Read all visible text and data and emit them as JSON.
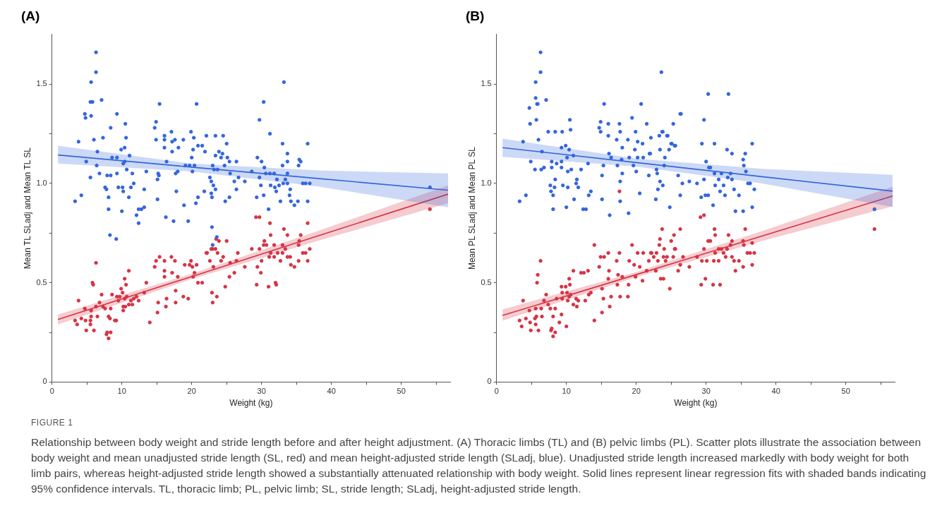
{
  "chart_data": [
    {
      "type": "scatter",
      "title": "(A)",
      "xlabel": "Weight (kg)",
      "ylabel": "Mean TL SLadj and Mean TL SL",
      "xlim": [
        0,
        57
      ],
      "ylim": [
        0,
        1.75
      ],
      "xticks": [
        0,
        {
          "value": 5,
          "label": null
        },
        10,
        {
          "value": 15,
          "label": null
        },
        20,
        {
          "value": 25,
          "label": null
        },
        30,
        {
          "value": 35,
          "label": null
        },
        40,
        {
          "value": 45,
          "label": null
        },
        50,
        {
          "value": 55,
          "label": null
        }
      ],
      "yticks": [
        0,
        {
          "value": 0.25,
          "label": null
        },
        0.5,
        {
          "value": 0.75,
          "label": null
        },
        {
          "value": 1,
          "label": "1.0"
        },
        {
          "value": 1.25,
          "label": null
        },
        1.5
      ],
      "grid": false,
      "marker": "circle",
      "annotations": [
        "FIGURE 1",
        "Relationship between body weight and stride length before and after height adjustment. (A) Thoracic limbs (TL) and (B) pelvic limbs (PL). Scatter plots illustrate the association between body weight and mean unadjusted stride length (SL, red) and mean height-adjusted stride length (SLadj, blue). Unadjusted stride length increased markedly with body weight for both limb pairs, whereas height-adjusted stride length showed a substantially attenuated relationship with body weight. Solid lines represent linear regression fits with shaded bands indicating 95% confidence intervals. TL, thoracic limb; PL, pelvic limb; SL, stride length; SLadj, height-adjusted stride length."
      ],
      "series": [
        {
          "type": "scatter",
          "color": "#3366dd",
          "x": [
            3.3,
            3.8,
            4.2,
            4.7,
            4.8,
            4.9,
            5.5,
            5.5,
            5.6,
            5.6,
            5.8,
            6.0,
            6.3,
            6.3,
            6.4,
            6.5,
            6.8,
            7.1,
            7.3,
            7.6,
            7.8,
            7.9,
            8.1,
            8.1,
            8.3,
            8.4,
            8.4,
            8.6,
            9.2,
            9.3,
            9.3,
            9.3,
            9.5,
            9.9,
            10.0,
            10.1,
            10.2,
            10.2,
            10.4,
            10.4,
            10.5,
            10.6,
            10.7,
            11.0,
            11.1,
            11.3,
            11.5,
            11.7,
            12.1,
            12.4,
            12.4,
            12.8,
            13.2,
            13.2,
            13.5,
            14.7,
            14.9,
            14.9,
            15.1,
            15.1,
            15.2,
            15.3,
            15.4,
            16.1,
            16.1,
            16.1,
            16.3,
            16.4,
            17.1,
            17.2,
            17.2,
            17.4,
            17.6,
            17.7,
            17.8,
            18.0,
            18.1,
            18.8,
            18.9,
            19.1,
            19.5,
            19.7,
            19.9,
            20.0,
            20.1,
            20.2,
            20.3,
            20.4,
            20.6,
            20.7,
            20.9,
            20.9,
            21.5,
            21.8,
            21.9,
            22.1,
            22.6,
            22.8,
            22.9,
            23.0,
            23.0,
            23.1,
            23.2,
            23.4,
            23.4,
            23.6,
            23.7,
            23.9,
            24.2,
            24.5,
            24.8,
            25.0,
            22.8,
            22.9,
            23.4,
            24.4,
            24.7,
            25.1,
            25.4,
            25.4,
            25.5,
            26.1,
            26.4,
            26.4,
            26.7,
            27.6,
            28.6,
            29.3,
            29.4,
            29.7,
            29.7,
            29.9,
            30.0,
            30.3,
            30.3,
            30.4,
            30.6,
            31.0,
            31.2,
            31.2,
            31.3,
            31.8,
            31.9,
            32.1,
            32.2,
            32.5,
            32.7,
            33.0,
            33.0,
            33.2,
            33.1,
            33.4,
            33.7,
            33.7,
            33.7,
            33.7,
            34.0,
            34.1,
            34.2,
            34.7,
            35.2,
            35.3,
            35.4,
            35.6,
            35.9,
            36.3,
            36.6,
            36.6,
            36.9,
            54.1
          ],
          "values": [
            0.91,
            1.21,
            0.94,
            1.35,
            1.33,
            1.11,
            1.03,
            1.41,
            1.34,
            1.51,
            1.41,
            1.22,
            1.66,
            1.56,
            1.09,
            1.16,
            1.05,
            1.42,
            1.23,
            0.98,
            0.97,
            1.04,
            0.93,
            0.87,
            0.74,
            1.28,
            1.04,
            1.13,
            0.72,
            1.05,
            1.35,
            1.13,
            0.98,
            1.17,
            0.86,
            0.98,
            1.1,
            0.96,
            1.11,
            1.18,
            1.3,
            1.23,
            1.07,
            0.93,
            1.14,
            0.98,
            1.05,
            1.0,
            0.84,
            0.8,
            0.87,
            0.87,
            0.88,
            0.97,
            1.06,
            1.28,
            1.31,
            1.22,
            0.92,
            1.02,
            1.05,
            1.04,
            1.4,
            1.22,
            1.18,
            1.24,
            0.83,
            1.11,
            1.26,
            1.16,
            1.21,
            0.81,
            1.22,
            1.05,
            0.96,
            1.06,
            1.18,
            1.22,
            0.89,
            1.09,
            0.81,
            1.09,
            1.26,
            1.13,
            1.06,
            1.17,
            1.23,
            1.09,
            0.9,
            1.4,
            0.93,
            1.19,
            1.19,
            0.96,
            1.16,
            1.24,
            1.03,
            0.95,
            0.78,
            0.69,
            1.09,
            0.99,
            1.07,
            1.24,
            0.97,
            0.73,
            1.07,
            1.16,
            1.13,
            1.24,
            0.91,
            1.2,
            1.01,
            0.93,
            1.14,
            1.15,
            1.09,
            1.13,
            0.93,
            1.11,
            1.05,
            1.01,
            1.11,
            0.97,
            1.03,
            1.01,
            1.06,
            0.93,
            1.13,
            1.32,
            1.03,
            0.99,
            1.11,
            1.41,
            0.94,
            1.08,
            1.05,
            0.87,
            1.25,
            1.05,
            0.99,
            1.05,
            0.98,
            0.96,
            1.02,
            0.99,
            0.91,
            1.2,
            1.09,
            1.51,
            1.0,
            1.02,
            1.15,
            1.11,
            1.05,
            1.0,
            0.94,
            0.97,
            0.91,
            0.89,
            0.91,
            1.09,
            1.12,
            1.11,
            1.0,
            1.0,
            1.2,
            0.91,
            1.0,
            0.98
          ]
        },
        {
          "type": "scatter",
          "color": "#d63445",
          "x": [
            3.3,
            3.6,
            3.8,
            4.2,
            4.7,
            4.8,
            4.9,
            5.5,
            5.5,
            5.6,
            5.6,
            5.8,
            5.9,
            6.0,
            6.3,
            6.3,
            6.5,
            6.8,
            7.1,
            7.3,
            7.6,
            7.8,
            7.9,
            8.1,
            8.1,
            8.3,
            8.4,
            8.4,
            8.6,
            9.0,
            9.2,
            9.3,
            9.5,
            9.7,
            9.9,
            10.1,
            10.2,
            10.2,
            10.4,
            10.4,
            10.5,
            10.6,
            10.7,
            11.0,
            11.0,
            11.3,
            11.5,
            11.7,
            12.1,
            12.4,
            13.2,
            13.5,
            14.0,
            14.7,
            14.9,
            15.1,
            15.2,
            15.4,
            16.1,
            16.1,
            16.1,
            16.3,
            16.4,
            17.1,
            17.2,
            17.6,
            17.7,
            17.7,
            18.0,
            18.8,
            19.0,
            19.5,
            19.7,
            19.9,
            20.1,
            20.2,
            20.4,
            20.7,
            20.9,
            21.5,
            22.1,
            22.6,
            22.9,
            23.0,
            23.0,
            23.4,
            23.5,
            23.6,
            23.7,
            23.9,
            24.2,
            24.8,
            25.0,
            22.2,
            22.8,
            23.1,
            24.5,
            25.4,
            25.5,
            26.1,
            26.4,
            26.6,
            27.6,
            28.6,
            29.2,
            29.3,
            29.4,
            29.7,
            29.7,
            29.9,
            30.0,
            30.3,
            30.4,
            30.7,
            31.0,
            31.1,
            31.2,
            31.3,
            31.3,
            31.8,
            31.8,
            32.0,
            32.1,
            32.3,
            32.7,
            33.0,
            33.0,
            33.2,
            33.4,
            33.7,
            33.7,
            34.1,
            34.2,
            34.7,
            35.3,
            35.3,
            35.4,
            35.6,
            35.9,
            36.3,
            36.6,
            36.6,
            36.9,
            54.1
          ],
          "values": [
            0.31,
            0.29,
            0.41,
            0.32,
            0.37,
            0.31,
            0.26,
            0.31,
            0.29,
            0.33,
            0.36,
            0.5,
            0.49,
            0.26,
            0.6,
            0.38,
            0.33,
            0.4,
            0.44,
            0.38,
            0.37,
            0.24,
            0.25,
            0.33,
            0.22,
            0.32,
            0.37,
            0.25,
            0.44,
            0.31,
            0.31,
            0.43,
            0.41,
            0.43,
            0.47,
            0.45,
            0.38,
            0.36,
            0.42,
            0.52,
            0.38,
            0.49,
            0.43,
            0.56,
            0.39,
            0.41,
            0.39,
            0.42,
            0.43,
            0.41,
            0.45,
            0.5,
            0.3,
            0.58,
            0.61,
            0.35,
            0.4,
            0.63,
            0.61,
            0.53,
            0.56,
            0.38,
            0.42,
            0.63,
            0.55,
            0.61,
            0.46,
            0.4,
            0.53,
            0.43,
            0.59,
            0.42,
            0.59,
            0.61,
            0.58,
            0.53,
            0.55,
            0.59,
            0.5,
            0.5,
            0.65,
            0.61,
            0.45,
            0.4,
            0.67,
            0.67,
            0.72,
            0.43,
            0.65,
            0.71,
            0.61,
            0.48,
            0.71,
            0.65,
            0.67,
            0.58,
            0.63,
            0.53,
            0.6,
            0.55,
            0.61,
            0.65,
            0.58,
            0.67,
            0.83,
            0.49,
            0.58,
            0.83,
            0.67,
            0.55,
            0.61,
            0.69,
            0.71,
            0.69,
            0.48,
            0.63,
            0.8,
            0.74,
            0.65,
            0.69,
            0.63,
            0.5,
            0.49,
            0.65,
            0.61,
            0.69,
            0.65,
            0.77,
            0.67,
            0.74,
            0.63,
            0.63,
            0.59,
            0.58,
            0.61,
            0.69,
            0.71,
            0.74,
            0.65,
            0.65,
            0.8,
            0.61,
            0.67,
            0.87
          ]
        },
        {
          "type": "line",
          "color": "#3366dd",
          "marker": "none",
          "x": [
            0.85,
            20,
            38,
            56.7
          ],
          "values": [
            1.143,
            1.082,
            1.025,
            0.966
          ],
          "lower": [
            1.1,
            1.06,
            0.985,
            0.88
          ],
          "upper": [
            1.19,
            1.1,
            1.065,
            1.05
          ]
        },
        {
          "type": "line",
          "color": "#d63445",
          "marker": "none",
          "x": [
            0.85,
            20,
            38,
            56.7
          ],
          "values": [
            0.315,
            0.531,
            0.735,
            0.946
          ],
          "lower": [
            0.29,
            0.518,
            0.71,
            0.9
          ],
          "upper": [
            0.34,
            0.545,
            0.76,
            0.99
          ]
        }
      ]
    },
    {
      "type": "scatter",
      "title": "(B)",
      "xlabel": "Weight (kg)",
      "ylabel": "Mean PL SLadj and Mean PL SL",
      "xlim": [
        0,
        57
      ],
      "ylim": [
        0,
        1.75
      ],
      "xticks": [
        0,
        {
          "value": 5,
          "label": null
        },
        10,
        {
          "value": 15,
          "label": null
        },
        20,
        {
          "value": 25,
          "label": null
        },
        30,
        {
          "value": 35,
          "label": null
        },
        40,
        {
          "value": 45,
          "label": null
        },
        50,
        {
          "value": 55,
          "label": null
        }
      ],
      "yticks": [
        0,
        {
          "value": 0.25,
          "label": null
        },
        0.5,
        {
          "value": 0.75,
          "label": null
        },
        {
          "value": 1,
          "label": "1.0"
        },
        {
          "value": 1.25,
          "label": null
        },
        1.5
      ],
      "grid": false,
      "marker": "circle",
      "series": [
        {
          "type": "scatter",
          "color": "#3366dd",
          "x": [
            3.3,
            3.8,
            4.2,
            4.7,
            4.8,
            4.9,
            5.5,
            5.6,
            5.6,
            5.7,
            5.8,
            5.9,
            6.0,
            6.3,
            6.3,
            6.5,
            6.4,
            6.8,
            7.1,
            7.4,
            7.7,
            7.8,
            7.9,
            7.9,
            8.1,
            8.1,
            8.3,
            8.4,
            8.4,
            8.6,
            9.3,
            9.3,
            9.4,
            9.3,
            9.5,
            9.9,
            10.0,
            10.1,
            10.2,
            10.2,
            10.4,
            10.5,
            10.6,
            10.7,
            11.0,
            11.1,
            11.4,
            11.5,
            11.7,
            12.1,
            12.4,
            12.8,
            13.1,
            13.2,
            13.5,
            14.7,
            14.9,
            14.9,
            15.1,
            15.1,
            15.3,
            15.4,
            16.0,
            16.0,
            16.1,
            16.2,
            16.4,
            17.2,
            17.3,
            17.6,
            17.7,
            17.7,
            17.7,
            17.9,
            18.0,
            18.0,
            18.8,
            18.9,
            19.0,
            19.4,
            19.6,
            19.8,
            19.9,
            20.0,
            20.2,
            20.2,
            20.5,
            20.7,
            20.9,
            21.0,
            21.5,
            21.8,
            21.9,
            22.1,
            22.8,
            22.9,
            23.0,
            23.1,
            23.3,
            23.4,
            23.4,
            23.6,
            23.7,
            23.8,
            24.0,
            24.1,
            24.4,
            24.7,
            24.8,
            25.0,
            25.3,
            25.5,
            26.0,
            26.3,
            26.3,
            26.6,
            22.0,
            23.8,
            24.5,
            25.1,
            25.6,
            26.4,
            27.6,
            28.7,
            29.3,
            29.4,
            29.7,
            29.7,
            29.9,
            30.0,
            30.3,
            30.3,
            30.4,
            30.6,
            31.0,
            31.2,
            31.2,
            31.3,
            31.8,
            32.0,
            32.2,
            32.5,
            32.7,
            33.0,
            33.2,
            33.1,
            33.5,
            33.7,
            33.7,
            34.0,
            34.2,
            34.7,
            35.3,
            35.3,
            35.4,
            35.6,
            35.7,
            36.0,
            36.3,
            36.6,
            36.6,
            36.9,
            54.1
          ],
          "values": [
            0.91,
            1.21,
            0.94,
            1.38,
            1.3,
            1.11,
            1.07,
            1.43,
            1.51,
            1.32,
            1.4,
            1.4,
            1.22,
            1.66,
            1.56,
            1.16,
            1.07,
            1.08,
            1.42,
            1.26,
            0.99,
            0.96,
            1.08,
            1.11,
            0.94,
            0.87,
            0.98,
            1.26,
            1.02,
            1.1,
            1.18,
            1.11,
            1.26,
            1.08,
            0.99,
            1.19,
            0.88,
            1.13,
            0.98,
            1.06,
            1.17,
            1.32,
            1.27,
            1.07,
            1.14,
            0.92,
            1.0,
            1.02,
            0.98,
            1.07,
            0.87,
            0.87,
            1.1,
            0.94,
            0.96,
            1.28,
            1.31,
            1.26,
            1.04,
            0.92,
            1.09,
            1.4,
            1.3,
            1.24,
            1.15,
            0.84,
            1.13,
            1.22,
            1.09,
            1.3,
            1.26,
            1.01,
            0.91,
            1.12,
            1.05,
            1.18,
            1.22,
            0.85,
            1.13,
            1.33,
            1.09,
            1.17,
            1.26,
            1.06,
            1.21,
            1.13,
            0.95,
            1.4,
            1.2,
            1.13,
            1.3,
            1.04,
            1.15,
            1.23,
            0.92,
            1.07,
            1.05,
            0.97,
            1.24,
            1.17,
            1.01,
            1.56,
            1.26,
            0.99,
            1.09,
            1.13,
            1.24,
            1.17,
            0.88,
            1.2,
            1.3,
            1.19,
            1.04,
            1.35,
            0.94,
            1.0,
            1.15,
            1.26,
            1.24,
            1.2,
            1.19,
            1.35,
            1.01,
            1.0,
            0.93,
            1.2,
            1.32,
            1.02,
            0.94,
            1.11,
            1.45,
            0.94,
            1.08,
            1.08,
            0.89,
            1.2,
            1.05,
            0.99,
            1.02,
            0.96,
            1.05,
            0.99,
            0.94,
            1.17,
            1.45,
            1.03,
            1.05,
            1.15,
            1.02,
            0.97,
            0.86,
            0.94,
            0.86,
            1.12,
            1.09,
            1.15,
            1.06,
            1.0,
            1.0,
            1.2,
            0.88,
            0.97,
            0.87
          ]
        },
        {
          "type": "scatter",
          "color": "#d63445",
          "x": [
            3.3,
            3.6,
            3.8,
            4.2,
            4.7,
            4.8,
            4.9,
            5.5,
            5.6,
            5.7,
            5.6,
            5.8,
            5.9,
            6.0,
            6.3,
            6.4,
            6.5,
            6.8,
            7.1,
            7.4,
            7.7,
            7.8,
            7.9,
            8.1,
            8.1,
            8.4,
            8.4,
            8.6,
            9.0,
            9.3,
            9.3,
            9.4,
            9.4,
            9.9,
            10.0,
            10.1,
            10.2,
            10.4,
            10.4,
            10.5,
            10.6,
            11.0,
            11.0,
            11.4,
            11.5,
            11.7,
            12.1,
            12.5,
            12.7,
            13.1,
            13.2,
            13.5,
            14.0,
            14.0,
            14.7,
            14.9,
            15.1,
            15.1,
            15.3,
            15.4,
            16.0,
            16.0,
            16.1,
            16.2,
            16.4,
            17.2,
            17.3,
            17.4,
            17.6,
            17.7,
            18.0,
            18.8,
            18.9,
            19.0,
            19.4,
            19.7,
            19.9,
            20.2,
            20.5,
            20.9,
            21.0,
            21.5,
            21.8,
            22.1,
            22.5,
            22.8,
            22.9,
            23.1,
            23.3,
            23.4,
            23.5,
            23.7,
            23.9,
            24.0,
            24.4,
            24.8,
            25.0,
            25.3,
            25.5,
            26.0,
            26.3,
            26.3,
            17.6,
            22.2,
            23.9,
            24.2,
            25.4,
            25.6,
            26.7,
            27.6,
            28.7,
            29.2,
            29.3,
            29.4,
            29.7,
            29.7,
            29.9,
            30.1,
            30.3,
            30.6,
            31.0,
            31.1,
            31.2,
            31.3,
            31.3,
            31.8,
            31.8,
            32.0,
            32.2,
            32.5,
            32.8,
            33.0,
            33.2,
            33.5,
            33.7,
            33.7,
            34.0,
            34.2,
            34.7,
            35.3,
            35.3,
            35.4,
            35.6,
            35.9,
            36.3,
            36.6,
            36.6,
            36.9,
            54.1
          ],
          "values": [
            0.31,
            0.28,
            0.41,
            0.32,
            0.36,
            0.3,
            0.26,
            0.32,
            0.29,
            0.33,
            0.37,
            0.5,
            0.54,
            0.26,
            0.61,
            0.37,
            0.33,
            0.41,
            0.44,
            0.39,
            0.37,
            0.26,
            0.27,
            0.23,
            0.33,
            0.37,
            0.25,
            0.42,
            0.3,
            0.34,
            0.48,
            0.42,
            0.45,
            0.48,
            0.28,
            0.45,
            0.41,
            0.43,
            0.52,
            0.49,
            0.44,
            0.56,
            0.39,
            0.42,
            0.38,
            0.41,
            0.55,
            0.55,
            0.41,
            0.56,
            0.44,
            0.45,
            0.31,
            0.69,
            0.58,
            0.63,
            0.47,
            0.35,
            0.42,
            0.63,
            0.65,
            0.52,
            0.56,
            0.38,
            0.43,
            0.61,
            0.49,
            0.54,
            0.65,
            0.43,
            0.53,
            0.43,
            0.49,
            0.61,
            0.69,
            0.59,
            0.53,
            0.65,
            0.58,
            0.51,
            0.65,
            0.56,
            0.61,
            0.65,
            0.63,
            0.56,
            0.65,
            0.61,
            0.69,
            0.72,
            0.52,
            0.77,
            0.63,
            0.67,
            0.63,
            0.47,
            0.71,
            0.63,
            0.67,
            0.56,
            0.77,
            0.59,
            0.96,
            0.65,
            0.52,
            0.61,
            0.74,
            0.67,
            0.63,
            0.58,
            0.63,
            0.83,
            0.49,
            0.61,
            0.84,
            0.67,
            0.52,
            0.61,
            0.71,
            0.71,
            0.49,
            0.61,
            0.77,
            0.74,
            0.65,
            0.67,
            0.61,
            0.49,
            0.67,
            0.65,
            0.63,
            0.67,
            0.74,
            0.69,
            0.63,
            0.71,
            0.61,
            0.56,
            0.61,
            0.58,
            0.71,
            0.69,
            0.77,
            0.65,
            0.65,
            0.7,
            0.59,
            0.65,
            0.77
          ]
        },
        {
          "type": "line",
          "color": "#3366dd",
          "marker": "none",
          "x": [
            0.85,
            20,
            38,
            56.7
          ],
          "values": [
            1.18,
            1.105,
            1.034,
            0.961
          ],
          "lower": [
            1.134,
            1.085,
            1.0,
            0.882
          ],
          "upper": [
            1.225,
            1.125,
            1.073,
            1.043
          ]
        },
        {
          "type": "line",
          "color": "#d63445",
          "marker": "none",
          "x": [
            0.85,
            20,
            38,
            56.7
          ],
          "values": [
            0.335,
            0.541,
            0.735,
            0.937
          ],
          "lower": [
            0.309,
            0.528,
            0.71,
            0.884
          ],
          "upper": [
            0.366,
            0.554,
            0.76,
            0.984
          ]
        }
      ]
    }
  ]
}
